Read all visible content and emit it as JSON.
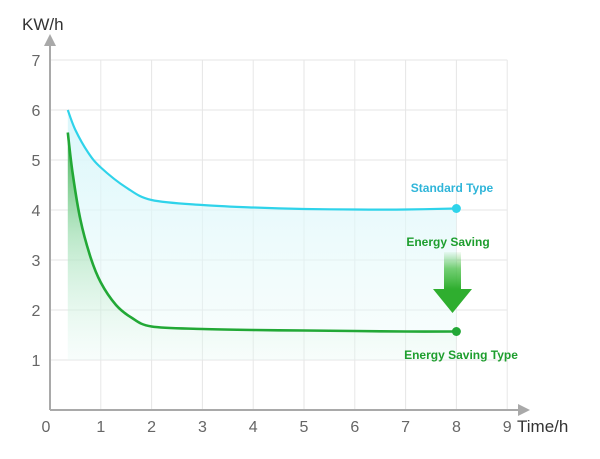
{
  "chart_data": {
    "type": "line",
    "title": "",
    "xlabel": "Time/h",
    "ylabel": "KW/h",
    "xlim": [
      0,
      9
    ],
    "ylim": [
      0,
      7
    ],
    "x_ticks": [
      "0",
      "1",
      "2",
      "3",
      "4",
      "5",
      "6",
      "7",
      "8",
      "9"
    ],
    "y_ticks": [
      "1",
      "2",
      "3",
      "4",
      "5",
      "6",
      "7"
    ],
    "grid": true,
    "series": [
      {
        "name": "Standard Type",
        "color": "#2fd3ea",
        "points": [
          [
            0.35,
            6.0
          ],
          [
            0.5,
            5.6
          ],
          [
            0.75,
            5.15
          ],
          [
            1.0,
            4.85
          ],
          [
            1.5,
            4.45
          ],
          [
            2.0,
            4.2
          ],
          [
            3.0,
            4.1
          ],
          [
            4.0,
            4.05
          ],
          [
            5.0,
            4.02
          ],
          [
            6.0,
            4.01
          ],
          [
            7.0,
            4.01
          ],
          [
            8.0,
            4.03
          ]
        ]
      },
      {
        "name": "Energy Saving Type",
        "color": "#22a836",
        "points": [
          [
            0.35,
            5.55
          ],
          [
            0.45,
            4.7
          ],
          [
            0.6,
            3.8
          ],
          [
            0.8,
            3.05
          ],
          [
            1.0,
            2.55
          ],
          [
            1.3,
            2.1
          ],
          [
            1.6,
            1.85
          ],
          [
            2.0,
            1.67
          ],
          [
            3.0,
            1.62
          ],
          [
            4.0,
            1.6
          ],
          [
            5.0,
            1.59
          ],
          [
            6.0,
            1.58
          ],
          [
            7.0,
            1.57
          ],
          [
            8.0,
            1.57
          ]
        ]
      }
    ],
    "annotations": [
      {
        "text": "Standard Type",
        "color": "#2fb5d9"
      },
      {
        "text": "Energy Saving",
        "color": "#1e9e2e"
      },
      {
        "text": "Energy Saving Type",
        "color": "#1e9e2e"
      }
    ],
    "arrow_color": "#3dbb3a"
  }
}
